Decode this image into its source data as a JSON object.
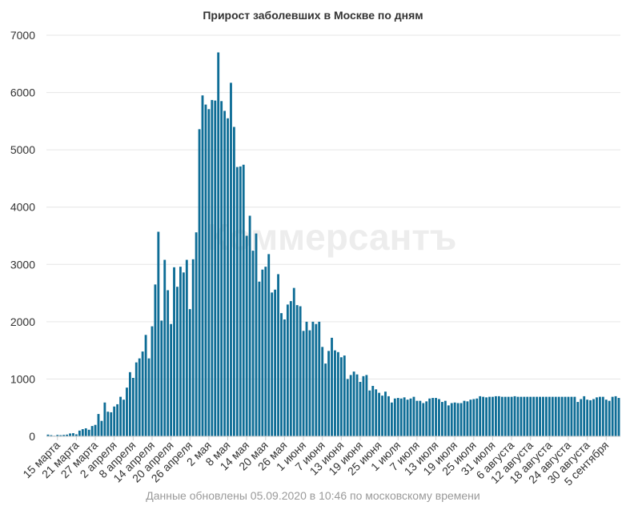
{
  "chart_data": {
    "type": "bar",
    "title": "Прирост заболевших в Москве по дням",
    "ylim": [
      0,
      7000
    ],
    "yticks": [
      0,
      1000,
      2000,
      3000,
      4000,
      5000,
      6000,
      7000
    ],
    "grid": true,
    "bar_color": "#0e6d96",
    "x_tick_labels": [
      "15 марта",
      "21 марта",
      "27 марта",
      "2 апреля",
      "8 апреля",
      "14 апреля",
      "20 апреля",
      "26 апреля",
      "2 мая",
      "8 мая",
      "14 мая",
      "20 мая",
      "26 мая",
      "1 июня",
      "7 июня",
      "13 июня",
      "19 июня",
      "25 июня",
      "1 июля",
      "7 июля",
      "13 июля",
      "19 июля",
      "25 июля",
      "31 июля",
      "6 августа",
      "12 августа",
      "18 августа",
      "24 августа",
      "30 августа",
      "5 сентября"
    ],
    "series": [
      {
        "start_date": "12 марта",
        "values": [
          30,
          20,
          10,
          25,
          20,
          25,
          30,
          50,
          55,
          35,
          100,
          125,
          140,
          115,
          180,
          200,
          390,
          270,
          590,
          430,
          420,
          520,
          560,
          690,
          640,
          850,
          1120,
          1020,
          1290,
          1360,
          1480,
          1770,
          1360,
          1920,
          2650,
          3570,
          2020,
          3080,
          2550,
          1960,
          2950,
          2610,
          2960,
          2860,
          3080,
          2220,
          3090,
          3560,
          5360,
          5950,
          5790,
          5710,
          5870,
          5860,
          6700,
          5850,
          5680,
          5550,
          6170,
          5400,
          4700,
          4710,
          4740,
          3500,
          3850,
          3240,
          3540,
          2700,
          2910,
          2960,
          3180,
          2510,
          2560,
          2830,
          2150,
          2040,
          2300,
          2360,
          2590,
          2290,
          2270,
          1840,
          2000,
          1850,
          2000,
          1960,
          2000,
          1560,
          1270,
          1490,
          1720,
          1500,
          1470,
          1380,
          1410,
          1000,
          1070,
          1130,
          1080,
          950,
          1050,
          1070,
          800,
          880,
          820,
          760,
          710,
          780,
          700,
          590,
          660,
          670,
          660,
          680,
          640,
          660,
          690,
          620,
          620,
          580,
          610,
          660,
          670,
          670,
          650,
          600,
          620,
          540,
          580,
          590,
          580,
          580,
          620,
          610,
          640,
          650,
          660,
          700,
          690,
          680,
          690,
          690,
          700,
          700,
          690,
          690,
          690,
          690,
          700,
          690,
          690,
          690,
          690,
          690,
          690,
          690,
          690,
          690,
          690,
          690,
          690,
          690,
          690,
          690,
          690,
          690,
          690,
          690,
          600,
          650,
          700,
          640,
          630,
          650,
          680,
          690,
          690,
          640,
          620,
          690,
          700,
          670
        ]
      }
    ]
  },
  "watermark": "Коммерсантъ",
  "footer": "Данные обновлены 05.09.2020 в 10:46 по московскому времени"
}
